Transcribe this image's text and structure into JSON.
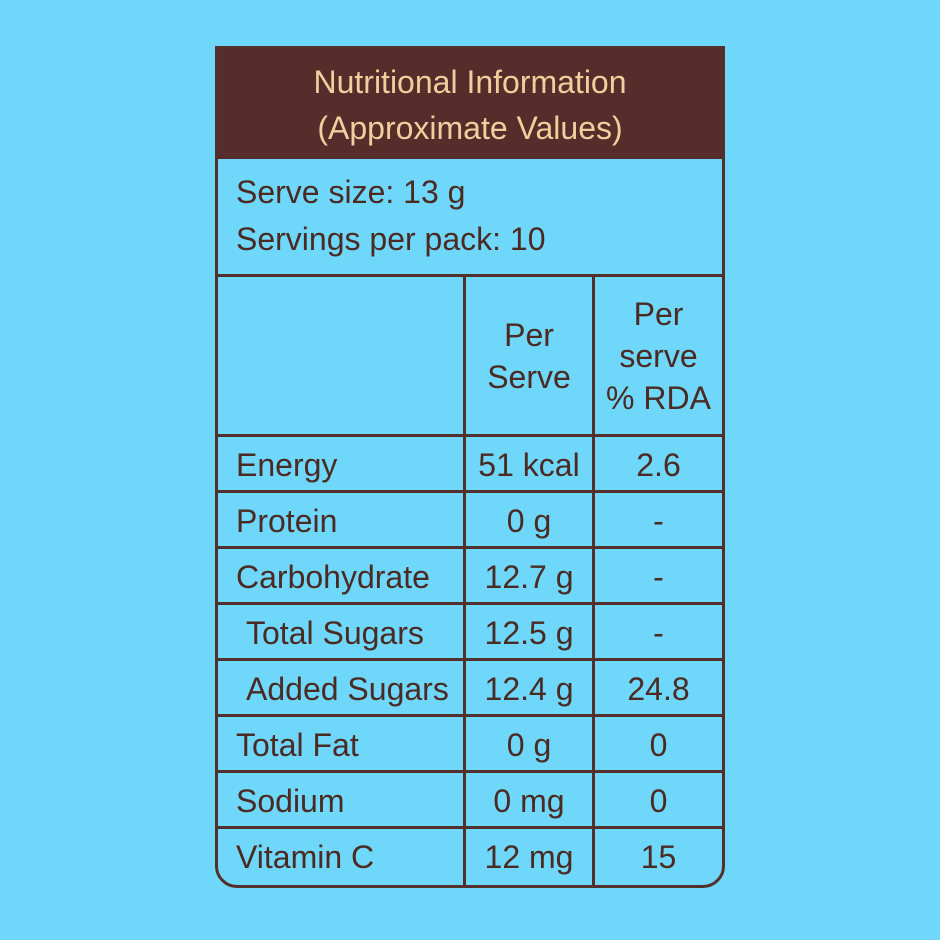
{
  "header": {
    "title": "Nutritional Information",
    "subtitle": "(Approximate Values)"
  },
  "serving": {
    "serve_size": "Serve size: 13 g",
    "servings_per_pack": "Servings per pack: 10"
  },
  "columns": {
    "per_serve": "Per\nServe",
    "rda": "Per\nserve\n% RDA"
  },
  "rows": [
    {
      "name": "Energy",
      "per_serve": "51 kcal",
      "rda": "2.6",
      "indent": false
    },
    {
      "name": "Protein",
      "per_serve": "0 g",
      "rda": "-",
      "indent": false
    },
    {
      "name": "Carbohydrate",
      "per_serve": "12.7 g",
      "rda": "-",
      "indent": false
    },
    {
      "name": "Total Sugars",
      "per_serve": "12.5 g",
      "rda": "-",
      "indent": true
    },
    {
      "name": "Added Sugars",
      "per_serve": "12.4 g",
      "rda": "24.8",
      "indent": true
    },
    {
      "name": "Total Fat",
      "per_serve": "0 g",
      "rda": "0",
      "indent": false
    },
    {
      "name": "Sodium",
      "per_serve": "0 mg",
      "rda": "0",
      "indent": false
    },
    {
      "name": "Vitamin C",
      "per_serve": "12 mg",
      "rda": "15",
      "indent": false
    }
  ],
  "colors": {
    "background": "#6fd7fa",
    "header_bg": "#562d2b",
    "header_text": "#f0cf9e",
    "text": "#4a2a22",
    "border": "#53302a"
  }
}
